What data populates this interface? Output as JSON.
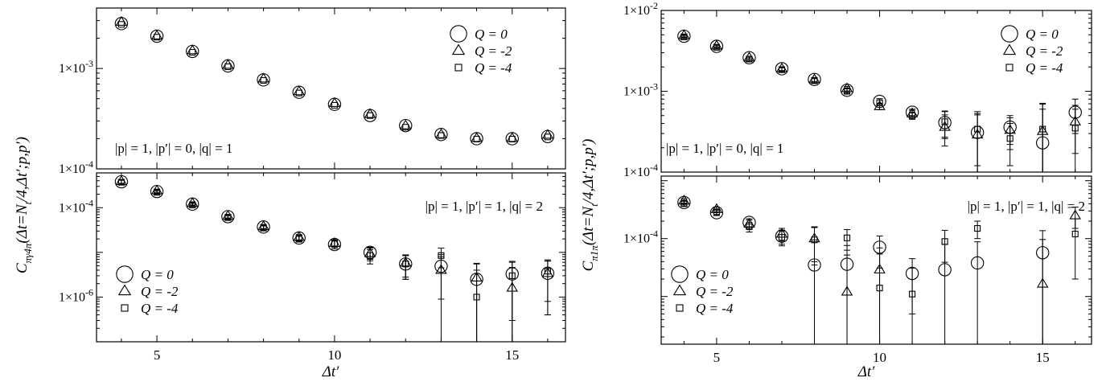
{
  "figure": {
    "x_label": "Δt′",
    "ylabel_left": "C",
    "ylabel_left_sub": "πγ4π",
    "ylabel_right": "C",
    "ylabel_right_sub": "π1π",
    "ylabel_args": "(Δt=N",
    "ylabel_args_sub": "t",
    "ylabel_args_rest": "/4,Δt′;p,p′)"
  },
  "chart_data": [
    {
      "type": "scatter",
      "panel": "left-top",
      "annotation": "|p| = 1,  |p′| = 0,  |q| = 1",
      "y_scale": "log",
      "ylim": [
        0.0001,
        0.004
      ],
      "xlim": [
        3.3,
        16.5
      ],
      "y_ticks": [
        {
          "value": 0.0001,
          "label": "1×10⁻⁴"
        },
        {
          "value": 0.001,
          "label": "1×10⁻³"
        }
      ],
      "x_ticks": [
        5,
        10,
        15
      ],
      "legend_position": "top-right",
      "series": [
        {
          "name": "Q = 0",
          "marker": "circle",
          "x": [
            4,
            5,
            6,
            7,
            8,
            9,
            10,
            11,
            12,
            13,
            14,
            15,
            16
          ],
          "y": [
            0.0028,
            0.0021,
            0.00148,
            0.00106,
            0.00077,
            0.00058,
            0.00044,
            0.00034,
            0.00027,
            0.00022,
            0.0002,
            0.0002,
            0.00021
          ]
        },
        {
          "name": "Q = -2",
          "marker": "triangle",
          "x": [
            4,
            5,
            6,
            7,
            8,
            9,
            10,
            11,
            12,
            13,
            14,
            15,
            16
          ],
          "y": [
            0.0029,
            0.00212,
            0.00151,
            0.00108,
            0.00079,
            0.00059,
            0.00045,
            0.00035,
            0.00027,
            0.00022,
            0.000202,
            0.000202,
            0.000217
          ]
        },
        {
          "name": "Q = -4",
          "marker": "square",
          "x": [
            4,
            5,
            6,
            7,
            8,
            9,
            10,
            11,
            12,
            13,
            14,
            15,
            16
          ],
          "y": [
            0.00275,
            0.00205,
            0.00145,
            0.00104,
            0.00076,
            0.00057,
            0.00043,
            0.00034,
            0.00026,
            0.000215,
            0.000198,
            0.000198,
            0.000208
          ]
        }
      ]
    },
    {
      "type": "scatter",
      "panel": "left-bottom",
      "annotation": "|p| = 1,  |p′| = 1,  |q| = 2",
      "y_scale": "log",
      "ylim": [
        1e-07,
        0.0006
      ],
      "xlim": [
        3.3,
        16.5
      ],
      "y_ticks": [
        {
          "value": 0.0001,
          "label": "1×10⁻⁴"
        },
        {
          "value": 1e-06,
          "label": "1×10⁻⁶"
        }
      ],
      "x_ticks": [
        5,
        10,
        15
      ],
      "legend_position": "bottom-left",
      "series": [
        {
          "name": "Q = 0",
          "marker": "circle",
          "x": [
            4,
            5,
            6,
            7,
            8,
            9,
            10,
            11,
            12,
            13,
            14,
            15,
            16
          ],
          "y": [
            0.00038,
            0.00023,
            0.00012,
            6.3e-05,
            3.7e-05,
            2.1e-05,
            1.5e-05,
            1e-05,
            5.5e-06,
            4.9e-06,
            2.5e-06,
            3.3e-06,
            3.4e-06
          ],
          "err": [
            4e-05,
            2e-05,
            1e-05,
            6e-06,
            4e-06,
            3e-06,
            3e-06,
            3e-06,
            3e-06,
            4e-06,
            3e-06,
            3e-06,
            3e-06
          ]
        },
        {
          "name": "Q = -2",
          "marker": "triangle",
          "x": [
            4,
            5,
            6,
            7,
            8,
            9,
            10,
            11,
            12,
            13,
            14,
            15,
            16
          ],
          "y": [
            0.00039,
            0.00024,
            0.000125,
            6.5e-05,
            3.8e-05,
            2.2e-05,
            1.6e-05,
            9.5e-06,
            5.8e-06,
            4e-06,
            2.7e-06,
            1.6e-06,
            3.4e-06
          ],
          "err": [
            4e-05,
            2e-05,
            1e-05,
            6e-06,
            4e-06,
            3e-06,
            3e-06,
            3e-06,
            3e-06,
            4e-06,
            3e-06,
            3e-06,
            3e-06
          ]
        },
        {
          "name": "Q = -4",
          "marker": "square",
          "x": [
            4,
            5,
            6,
            7,
            8,
            9,
            10,
            11,
            12,
            13,
            14,
            15,
            16
          ],
          "y": [
            0.00037,
            0.00022,
            0.000115,
            6e-05,
            3.5e-05,
            2e-05,
            1.6e-05,
            8.5e-06,
            5.5e-06,
            8.5e-06,
            1e-06,
            3e-06,
            3.8e-06
          ],
          "err": [
            4e-05,
            2e-05,
            1e-05,
            6e-06,
            4e-06,
            3e-06,
            3e-06,
            3e-06,
            3e-06,
            4e-06,
            3e-06,
            3e-06,
            3e-06
          ]
        }
      ]
    },
    {
      "type": "scatter",
      "panel": "right-top",
      "annotation": "|p| = 1,  |p′| = 0,  |q| = 1",
      "y_scale": "log",
      "ylim": [
        0.0001,
        0.01
      ],
      "xlim": [
        3.3,
        16.5
      ],
      "y_ticks": [
        {
          "value": 0.01,
          "label": "1×10⁻²"
        },
        {
          "value": 0.001,
          "label": "1×10⁻³"
        },
        {
          "value": 0.0001,
          "label": "1×10⁻⁴"
        }
      ],
      "x_ticks": [
        5,
        10,
        15
      ],
      "legend_position": "top-right",
      "series": [
        {
          "name": "Q = 0",
          "marker": "circle",
          "x": [
            4,
            5,
            6,
            7,
            8,
            9,
            10,
            11,
            12,
            13,
            14,
            15,
            16
          ],
          "y": [
            0.0048,
            0.0036,
            0.0026,
            0.0019,
            0.0014,
            0.00103,
            0.00075,
            0.00055,
            0.00041,
            0.00031,
            0.00036,
            0.00023,
            0.00055
          ],
          "err": [
            0.0002,
            0.00015,
            0.0001,
            0.0001,
            8e-05,
            7e-05,
            6e-05,
            5e-05,
            0.00015,
            0.00022,
            0.00014,
            0.00037,
            0.00025
          ]
        },
        {
          "name": "Q = -2",
          "marker": "triangle",
          "x": [
            4,
            5,
            6,
            7,
            8,
            9,
            10,
            11,
            12,
            13,
            14,
            15,
            16
          ],
          "y": [
            0.0049,
            0.00365,
            0.0026,
            0.0019,
            0.0014,
            0.00108,
            0.00065,
            0.00053,
            0.00036,
            0.00029,
            0.00033,
            0.00032,
            0.00042
          ],
          "err": [
            0.0002,
            0.00015,
            0.0001,
            0.0001,
            8e-05,
            7e-05,
            6e-05,
            5e-05,
            0.00015,
            0.00022,
            0.00014,
            0.00037,
            0.00025
          ]
        },
        {
          "name": "Q = -4",
          "marker": "square",
          "x": [
            4,
            5,
            6,
            7,
            8,
            9,
            10,
            11,
            12,
            13,
            14,
            15,
            16
          ],
          "y": [
            0.0047,
            0.0035,
            0.0025,
            0.00185,
            0.00135,
            0.001,
            0.00072,
            0.0005,
            0.00042,
            0.00034,
            0.00026,
            0.00034,
            0.00035
          ],
          "err": [
            0.0002,
            0.00015,
            0.0001,
            0.0001,
            8e-05,
            7e-05,
            6e-05,
            5e-05,
            0.00015,
            0.00022,
            0.00014,
            0.00037,
            0.00025
          ]
        }
      ]
    },
    {
      "type": "scatter",
      "panel": "right-bottom",
      "annotation": "|p| = 1,  |p′| = 1,  |q| = 2",
      "y_scale": "log",
      "ylim": [
        1.5e-06,
        0.0012
      ],
      "xlim": [
        3.3,
        16.5
      ],
      "y_ticks": [
        {
          "value": 0.0001,
          "label": "1×10⁻⁴"
        }
      ],
      "x_ticks": [
        5,
        10,
        15
      ],
      "legend_position": "bottom-left",
      "series": [
        {
          "name": "Q = 0",
          "marker": "circle",
          "x": [
            4,
            5,
            6,
            7,
            8,
            9,
            10,
            11,
            12,
            13,
            14,
            15,
            16
          ],
          "y": [
            0.00042,
            0.00028,
            0.00019,
            0.00011,
            3.5e-05,
            3.6e-05,
            7.1e-05,
            2.5e-05,
            2.9e-05,
            3.8e-05,
            0.0,
            5.7e-05,
            0.0
          ],
          "err": [
            4e-05,
            3e-05,
            3e-05,
            3e-05,
            6e-05,
            4e-05,
            4e-05,
            2e-05,
            5e-05,
            5e-05,
            0.0,
            8e-05,
            0.0
          ]
        },
        {
          "name": "Q = -2",
          "marker": "triangle",
          "x": [
            4,
            5,
            6,
            7,
            8,
            9,
            10,
            11,
            12,
            13,
            14,
            15,
            16
          ],
          "y": [
            0.00045,
            0.00032,
            0.00018,
            0.00012,
            0.0001,
            1.2e-05,
            2.9e-05,
            0.0,
            0.0,
            0.0,
            0.0,
            1.65e-05,
            0.00025
          ],
          "err": [
            4e-05,
            3e-05,
            3e-05,
            3e-05,
            6e-05,
            4e-05,
            4e-05,
            2e-05,
            5e-05,
            5e-05,
            0.0,
            8e-05,
            0.0001
          ]
        },
        {
          "name": "Q = -4",
          "marker": "square",
          "x": [
            4,
            5,
            6,
            7,
            8,
            9,
            10,
            11,
            12,
            13,
            14,
            15,
            16
          ],
          "y": [
            0.0004,
            0.00029,
            0.00016,
            0.000105,
            9.5e-05,
            0.000103,
            1.4e-05,
            1.1e-05,
            8.9e-05,
            0.00015,
            0.0,
            0.0,
            0.00012
          ],
          "err": [
            4e-05,
            3e-05,
            3e-05,
            3e-05,
            6e-05,
            4e-05,
            4e-05,
            2e-05,
            5e-05,
            5e-05,
            0.0,
            8e-05,
            0.0001
          ]
        }
      ]
    }
  ]
}
